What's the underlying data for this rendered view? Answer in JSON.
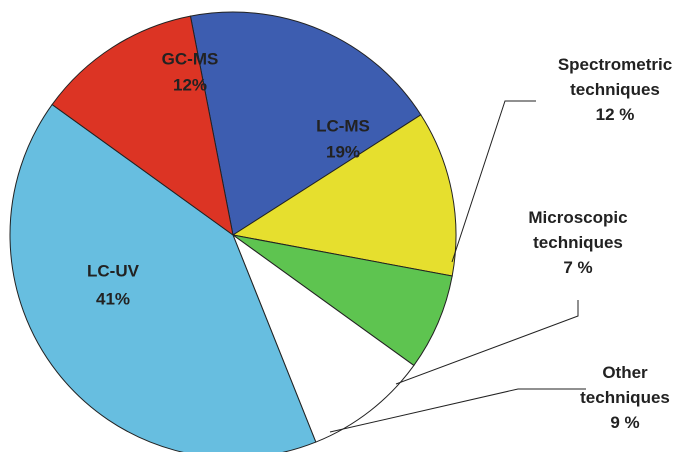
{
  "chart_data": {
    "type": "pie",
    "categories": [
      "LC-MS",
      "Spectrometric techniques",
      "Microscopic techniques",
      "Other techniques",
      "LC-UV",
      "GC-MS"
    ],
    "values": [
      19,
      12,
      7,
      9,
      41,
      12
    ],
    "value_labels": [
      "19%",
      "12 %",
      "7 %",
      "9 %",
      "41%",
      "12%"
    ],
    "colors": [
      "#3d5db0",
      "#e6df2e",
      "#5ec450",
      "#ffffff",
      "#67bee0",
      "#dc3424"
    ]
  }
}
